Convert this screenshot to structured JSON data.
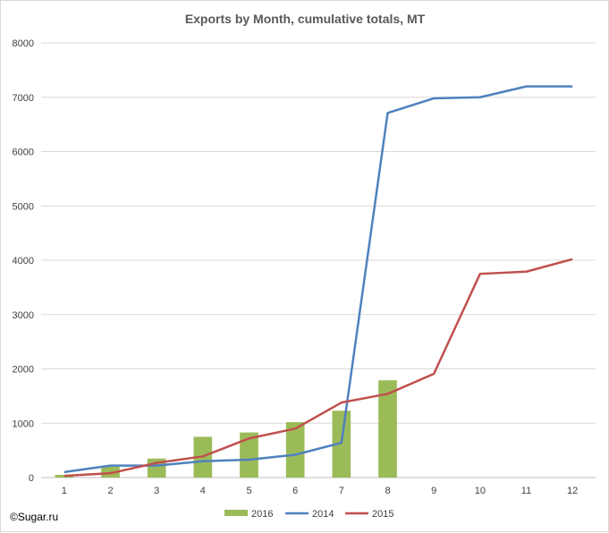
{
  "chart_data": {
    "type": "bar+line",
    "title": "Exports by Month, cumulative totals, MT",
    "categories": [
      "1",
      "2",
      "3",
      "4",
      "5",
      "6",
      "7",
      "8",
      "9",
      "10",
      "11",
      "12"
    ],
    "ylim": [
      0,
      8000
    ],
    "yticks": [
      "0",
      "1000",
      "2000",
      "3000",
      "4000",
      "5000",
      "6000",
      "7000",
      "8000"
    ],
    "grid": true,
    "legend_position": "bottom",
    "series": [
      {
        "name": "2016",
        "kind": "bar",
        "color": "#9bbb59",
        "values": [
          50,
          200,
          350,
          750,
          830,
          1020,
          1230,
          1790,
          null,
          null,
          null,
          null
        ]
      },
      {
        "name": "2014",
        "kind": "line",
        "color": "#4f81bd",
        "values": [
          100,
          220,
          220,
          300,
          330,
          420,
          640,
          6710,
          6980,
          7000,
          7200,
          7200
        ]
      },
      {
        "name": "2015",
        "kind": "line",
        "color": "#c0504d",
        "values": [
          30,
          80,
          270,
          390,
          720,
          900,
          1380,
          1540,
          1910,
          3750,
          3790,
          4020
        ]
      }
    ]
  },
  "watermark": "©Sugar.ru"
}
